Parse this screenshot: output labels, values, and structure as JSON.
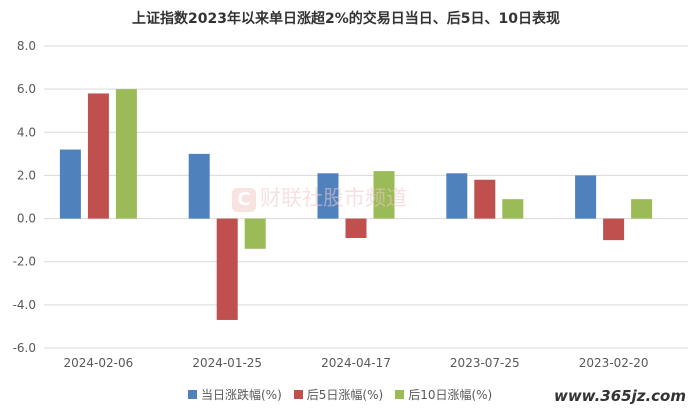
{
  "chart_data": {
    "type": "bar",
    "title": "上证指数2023年以来单日涨超2%的交易日当日、后5日、10日表现",
    "categories": [
      "2024-02-06",
      "2024-01-25",
      "2024-04-17",
      "2023-07-25",
      "2023-02-20"
    ],
    "series": [
      {
        "name": "当日涨跌幅(%)",
        "color": "#4f81bd",
        "values": [
          3.2,
          3.0,
          2.1,
          2.1,
          2.0
        ]
      },
      {
        "name": "后5日涨幅(%)",
        "color": "#c0504d",
        "values": [
          5.8,
          -4.7,
          -0.9,
          1.8,
          -1.0
        ]
      },
      {
        "name": "后10日涨幅(%)",
        "color": "#9bbb59",
        "values": [
          6.0,
          -1.4,
          2.2,
          0.9,
          0.9
        ]
      }
    ],
    "yticks": [
      "8.0",
      "6.0",
      "4.0",
      "2.0",
      "0.0",
      "-2.0",
      "-4.0",
      "-6.0"
    ],
    "ylim": [
      -6,
      8
    ],
    "grid": true,
    "legend": "bottom"
  },
  "watermark": {
    "logo": "C",
    "text": "财联社股市频道"
  },
  "site_mark": "www.365jz.com"
}
